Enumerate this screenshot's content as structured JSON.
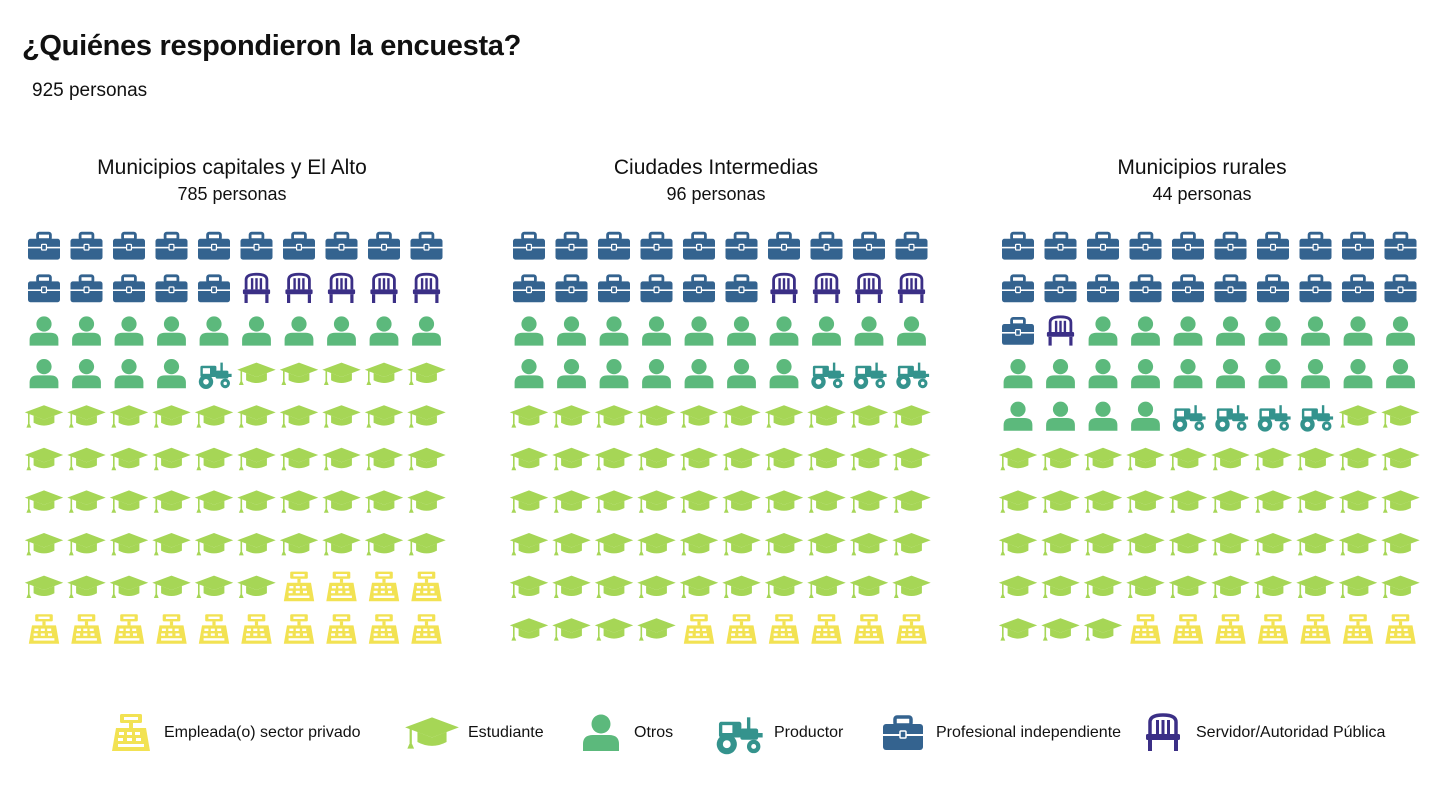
{
  "title": "¿Quiénes respondieron la encuesta?",
  "subtitle": "925 personas",
  "chart_data": {
    "type": "pictogram",
    "unit": "1 icon ≈ 1% of respondents per group",
    "categories": [
      "Empleada(o) sector privado",
      "Estudiante",
      "Otros",
      "Productor",
      "Profesional independiente",
      "Servidor/Autoridad Pública"
    ],
    "panels": [
      {
        "name": "Municipios capitales y El Alto",
        "count_label": "785 personas",
        "values": {
          "Profesional independiente": 15,
          "Servidor/Autoridad Pública": 5,
          "Otros": 14,
          "Productor": 1,
          "Estudiante": 51,
          "Empleada(o) sector privado": 14
        }
      },
      {
        "name": "Ciudades Intermedias",
        "count_label": "96 personas",
        "values": {
          "Profesional independiente": 16,
          "Servidor/Autoridad Pública": 4,
          "Otros": 17,
          "Productor": 3,
          "Estudiante": 54,
          "Empleada(o) sector privado": 6
        }
      },
      {
        "name": "Municipios rurales",
        "count_label": "44 personas",
        "values": {
          "Profesional independiente": 21,
          "Servidor/Autoridad Pública": 1,
          "Otros": 22,
          "Productor": 4,
          "Estudiante": 45,
          "Empleada(o) sector privado": 7
        }
      }
    ],
    "legend_position": "bottom"
  },
  "colors": {
    "Empleada(o) sector privado": "#f2e253",
    "Estudiante": "#a6d656",
    "Otros": "#5cb97c",
    "Productor": "#34938d",
    "Profesional independiente": "#34638f",
    "Servidor/Autoridad Pública": "#3b2f86"
  },
  "icons": {
    "Empleada(o) sector privado": "cash-register-icon",
    "Estudiante": "graduation-cap-icon",
    "Otros": "person-icon",
    "Productor": "tractor-icon",
    "Profesional independiente": "briefcase-icon",
    "Servidor/Autoridad Pública": "chair-icon"
  }
}
